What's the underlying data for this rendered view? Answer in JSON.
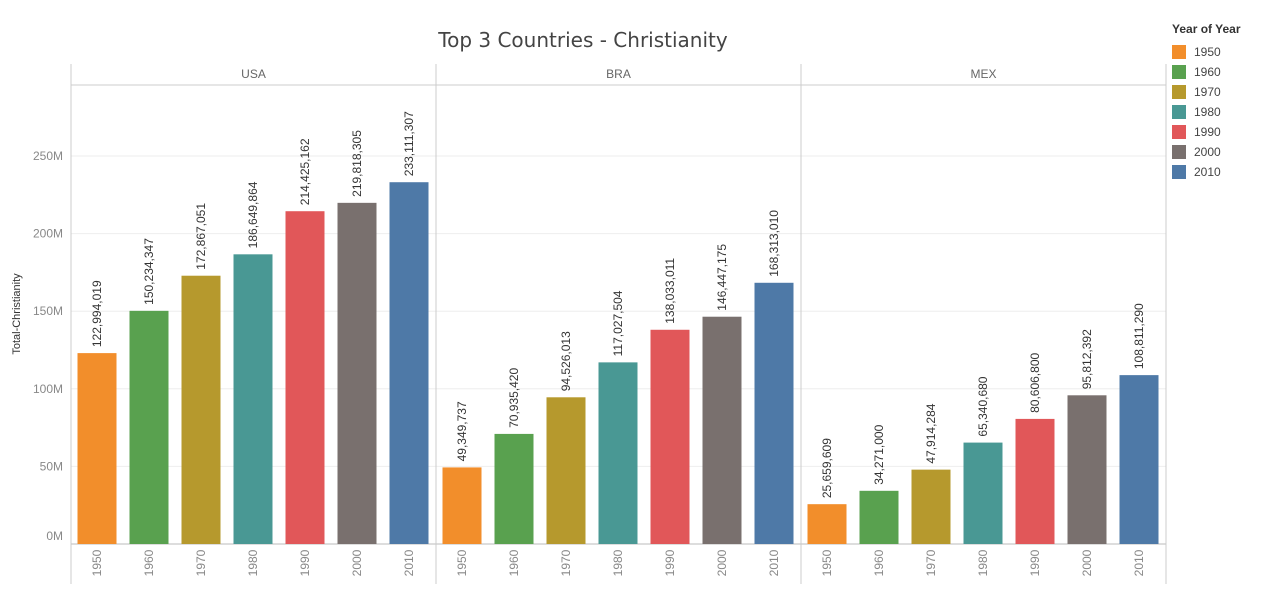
{
  "chart_data": {
    "type": "bar",
    "title": "Top 3 Countries - Christianity",
    "ylabel": "Total-Christianity",
    "ylim": [
      0,
      290000000
    ],
    "yticks": [
      {
        "value": 0,
        "label": "0M"
      },
      {
        "value": 50000000,
        "label": "50M"
      },
      {
        "value": 100000000,
        "label": "100M"
      },
      {
        "value": 150000000,
        "label": "150M"
      },
      {
        "value": 200000000,
        "label": "200M"
      },
      {
        "value": 250000000,
        "label": "250M"
      }
    ],
    "grid": true,
    "legend": {
      "title": "Year of Year",
      "placement": "right",
      "items": [
        {
          "label": "1950",
          "color": "#f28e2b"
        },
        {
          "label": "1960",
          "color": "#59a14f"
        },
        {
          "label": "1970",
          "color": "#b6992d"
        },
        {
          "label": "1980",
          "color": "#499894"
        },
        {
          "label": "1990",
          "color": "#e15759"
        },
        {
          "label": "2000",
          "color": "#79706e"
        },
        {
          "label": "2010",
          "color": "#4e79a7"
        }
      ]
    },
    "categories": [
      "1950",
      "1960",
      "1970",
      "1980",
      "1990",
      "2000",
      "2010"
    ],
    "panels": [
      {
        "name": "USA",
        "values": [
          122994019,
          150234347,
          172867051,
          186649864,
          214425162,
          219818305,
          233111307
        ],
        "labels": [
          "122,994,019",
          "150,234,347",
          "172,867,051",
          "186,649,864",
          "214,425,162",
          "219,818,305",
          "233,111,307"
        ]
      },
      {
        "name": "BRA",
        "values": [
          49349737,
          70935420,
          94526013,
          117027504,
          138033011,
          146447175,
          168313010
        ],
        "labels": [
          "49,349,737",
          "70,935,420",
          "94,526,013",
          "117,027,504",
          "138,033,011",
          "146,447,175",
          "168,313,010"
        ]
      },
      {
        "name": "MEX",
        "values": [
          25659609,
          34271000,
          47914284,
          65340680,
          80606800,
          95812392,
          108811290
        ],
        "labels": [
          "25,659,609",
          "34,271,000",
          "47,914,284",
          "65,340,680",
          "80,606,800",
          "95,812,392",
          "108,811,290"
        ]
      }
    ]
  }
}
